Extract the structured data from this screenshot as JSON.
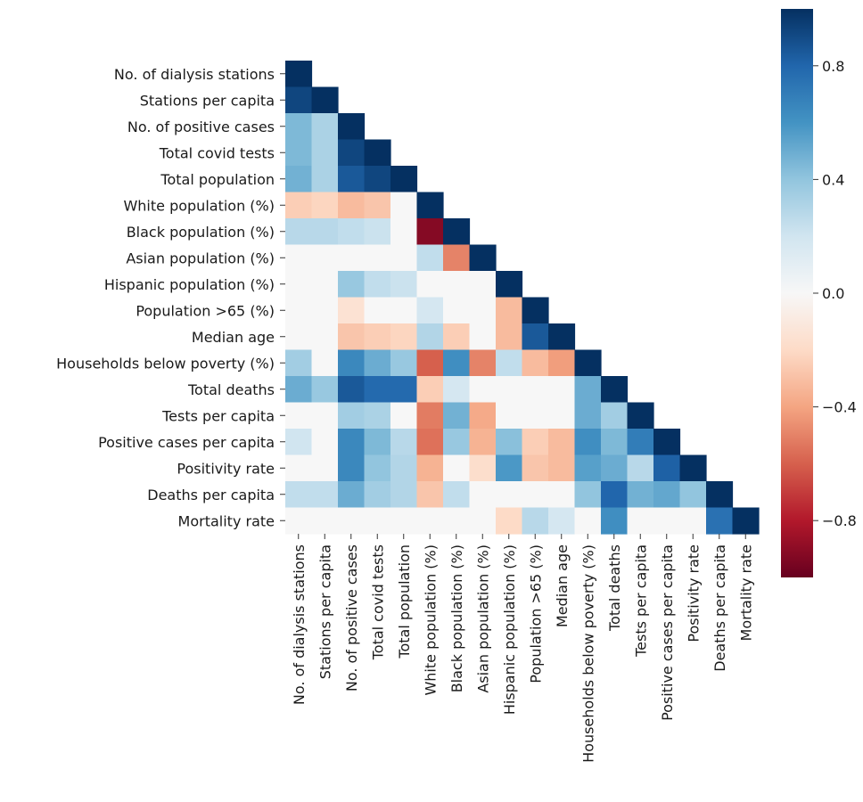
{
  "chart_data": {
    "type": "heatmap",
    "title": "",
    "xlabel": "",
    "ylabel": "",
    "mask": "upper-triangle",
    "labels": [
      "No. of dialysis stations",
      "Stations per capita",
      "No. of positive cases",
      "Total covid tests",
      "Total population",
      "White population (%)",
      "Black population (%)",
      "Asian population (%)",
      "Hispanic population (%)",
      "Population >65 (%)",
      "Median age",
      "Households below poverty (%)",
      "Total deaths",
      "Tests per capita",
      "Positive cases per capita",
      "Positivity rate",
      "Deaths per capita",
      "Mortality rate"
    ],
    "matrix": [
      [
        1.0
      ],
      [
        0.92,
        1.0
      ],
      [
        0.45,
        0.32,
        1.0
      ],
      [
        0.45,
        0.32,
        0.92,
        1.0
      ],
      [
        0.48,
        0.32,
        0.85,
        0.92,
        1.0
      ],
      [
        -0.25,
        -0.22,
        -0.32,
        -0.28,
        0.0,
        1.0
      ],
      [
        0.28,
        0.28,
        0.25,
        0.22,
        0.0,
        -0.92,
        1.0
      ],
      [
        0.0,
        0.0,
        0.0,
        0.0,
        0.0,
        0.25,
        -0.5,
        1.0
      ],
      [
        0.0,
        0.0,
        0.38,
        0.25,
        0.22,
        0.0,
        0.0,
        0.0,
        1.0
      ],
      [
        0.0,
        0.0,
        -0.15,
        0.0,
        0.0,
        0.18,
        0.0,
        0.0,
        -0.32,
        1.0
      ],
      [
        0.0,
        0.0,
        -0.28,
        -0.25,
        -0.22,
        0.3,
        -0.25,
        0.0,
        -0.32,
        0.85,
        1.0
      ],
      [
        0.35,
        0.0,
        0.65,
        0.5,
        0.38,
        -0.6,
        0.62,
        -0.5,
        0.25,
        -0.32,
        -0.42,
        1.0
      ],
      [
        0.5,
        0.38,
        0.85,
        0.78,
        0.78,
        -0.25,
        0.18,
        0.0,
        0.0,
        0.0,
        0.0,
        0.5,
        1.0
      ],
      [
        0.0,
        0.0,
        0.35,
        0.32,
        0.0,
        -0.52,
        0.48,
        -0.38,
        0.0,
        0.0,
        0.0,
        0.5,
        0.35,
        1.0
      ],
      [
        0.2,
        0.0,
        0.65,
        0.45,
        0.28,
        -0.55,
        0.38,
        -0.35,
        0.42,
        -0.25,
        -0.32,
        0.62,
        0.45,
        0.7,
        1.0
      ],
      [
        0.0,
        0.0,
        0.65,
        0.4,
        0.3,
        -0.35,
        0.0,
        -0.18,
        0.58,
        -0.28,
        -0.32,
        0.55,
        0.5,
        0.28,
        0.82,
        1.0
      ],
      [
        0.25,
        0.25,
        0.5,
        0.35,
        0.3,
        -0.28,
        0.25,
        0.0,
        0.0,
        0.0,
        0.0,
        0.4,
        0.8,
        0.48,
        0.52,
        0.4,
        1.0
      ],
      [
        0.0,
        0.0,
        0.0,
        0.0,
        0.0,
        0.0,
        0.0,
        0.0,
        -0.2,
        0.28,
        0.18,
        0.0,
        0.62,
        0.0,
        0.0,
        0.0,
        0.75,
        1.0
      ]
    ],
    "vmin": -1,
    "vmax": 1,
    "colorbar": {
      "ticks": [
        0.8,
        0.4,
        0.0,
        -0.4,
        -0.8
      ],
      "tick_labels": [
        "0.8",
        "0.4",
        "0.0",
        "−0.4",
        "−0.8"
      ],
      "colormap": "RdBu",
      "stops": [
        "#67001f",
        "#b2182b",
        "#d6604d",
        "#f4a582",
        "#fddbc7",
        "#f7f7f7",
        "#d1e5f0",
        "#92c5de",
        "#4393c3",
        "#2166ac",
        "#053061"
      ]
    }
  }
}
